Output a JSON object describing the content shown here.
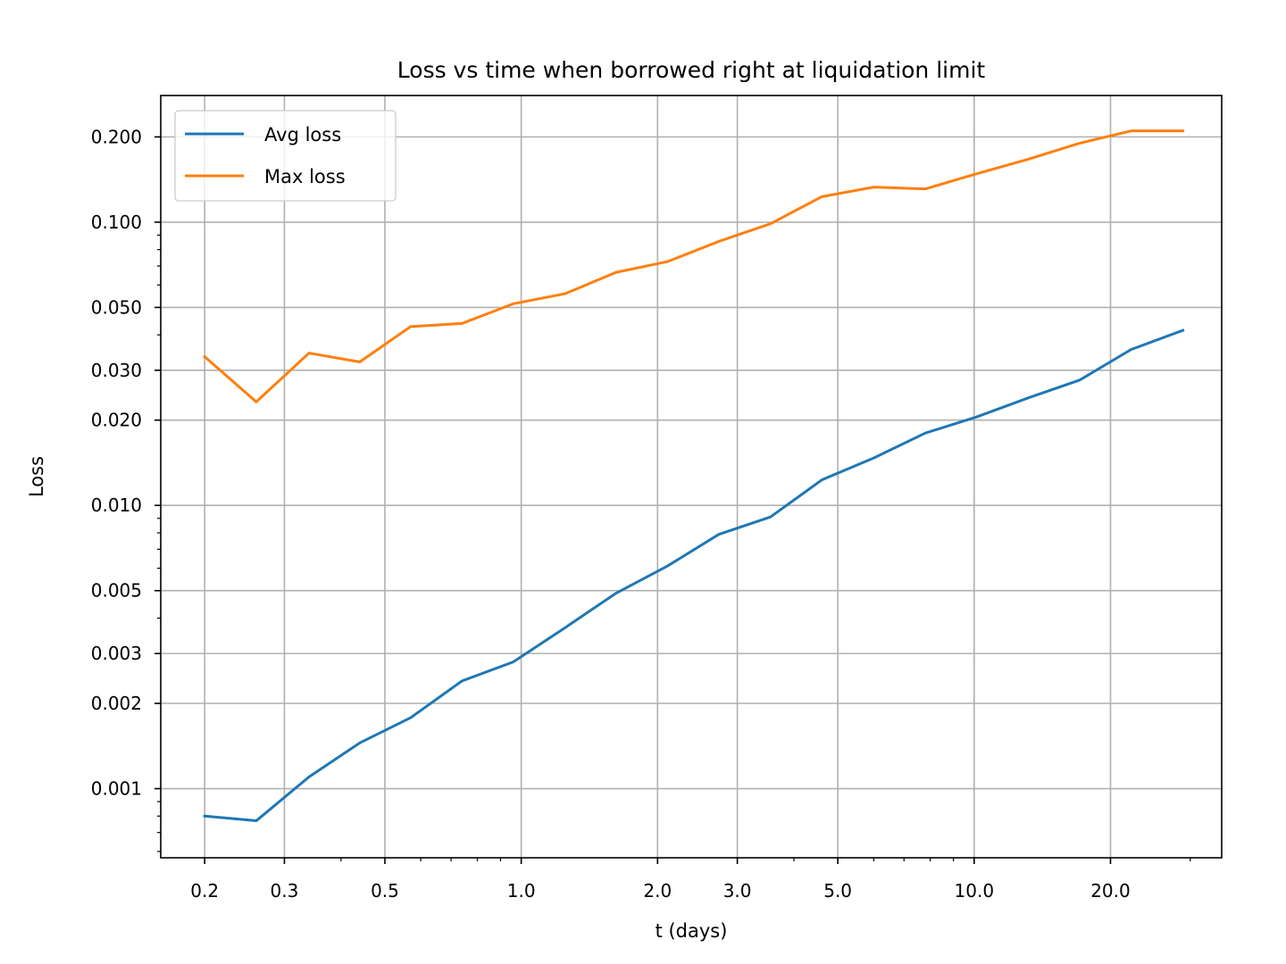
{
  "chart_data": {
    "type": "line",
    "title": "Loss vs time when borrowed right at liquidation limit",
    "xlabel": "t (days)",
    "ylabel": "Loss",
    "xscale": "log",
    "yscale": "log",
    "xlim": [
      0.16,
      35.2
    ],
    "ylim": [
      0.00057,
      0.28
    ],
    "grid": true,
    "legend_position": "top-left",
    "xticks": [
      {
        "value": 0.2,
        "label": "0.2"
      },
      {
        "value": 0.3,
        "label": "0.3"
      },
      {
        "value": 0.5,
        "label": "0.5"
      },
      {
        "value": 1.0,
        "label": "1.0"
      },
      {
        "value": 2.0,
        "label": "2.0"
      },
      {
        "value": 3.0,
        "label": "3.0"
      },
      {
        "value": 5.0,
        "label": "5.0"
      },
      {
        "value": 10.0,
        "label": "10.0"
      },
      {
        "value": 20.0,
        "label": "20.0"
      }
    ],
    "yticks": [
      {
        "value": 0.001,
        "label": "0.001"
      },
      {
        "value": 0.002,
        "label": "0.002"
      },
      {
        "value": 0.003,
        "label": "0.003"
      },
      {
        "value": 0.005,
        "label": "0.005"
      },
      {
        "value": 0.01,
        "label": "0.010"
      },
      {
        "value": 0.02,
        "label": "0.020"
      },
      {
        "value": 0.03,
        "label": "0.030"
      },
      {
        "value": 0.05,
        "label": "0.050"
      },
      {
        "value": 0.1,
        "label": "0.100"
      },
      {
        "value": 0.2,
        "label": "0.200"
      }
    ],
    "x": [
      0.2,
      0.26,
      0.34,
      0.44,
      0.57,
      0.74,
      0.96,
      1.25,
      1.62,
      2.1,
      2.73,
      3.55,
      4.61,
      6.0,
      7.8,
      10.1,
      13.2,
      17.1,
      22.2,
      28.9
    ],
    "series": [
      {
        "name": "Avg loss",
        "color": "#1f77b4",
        "values": [
          0.0008,
          0.00077,
          0.0011,
          0.00145,
          0.00178,
          0.0024,
          0.0028,
          0.0037,
          0.0049,
          0.0061,
          0.0079,
          0.0091,
          0.0123,
          0.0147,
          0.018,
          0.0205,
          0.024,
          0.0277,
          0.0355,
          0.0415
        ]
      },
      {
        "name": "Max loss",
        "color": "#ff7f0e",
        "values": [
          0.0335,
          0.0232,
          0.0345,
          0.0321,
          0.0428,
          0.0439,
          0.0515,
          0.0559,
          0.0665,
          0.0725,
          0.0855,
          0.0987,
          0.123,
          0.133,
          0.131,
          0.148,
          0.167,
          0.19,
          0.21,
          0.21
        ]
      }
    ]
  }
}
